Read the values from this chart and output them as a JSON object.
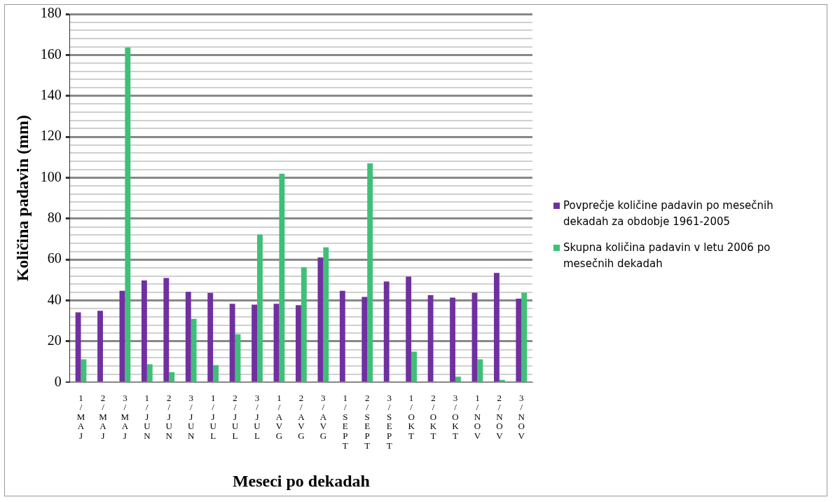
{
  "chart_data": {
    "type": "bar",
    "xlabel": "Meseci po dekadah",
    "ylabel": "Količina padavin (mm)",
    "categories": [
      "1/MAJ",
      "2/MAJ",
      "3/MAJ",
      "1/JUN",
      "2/JUN",
      "3/JUN",
      "1/JUL",
      "2/JUL",
      "3/JUL",
      "1/AVG",
      "2/AVG",
      "3/AVG",
      "1/SEPT",
      "2/SEPT",
      "3/SEPT",
      "1/OKT",
      "2/OKT",
      "3/OKT",
      "1/NOV",
      "2/NOV",
      "3/NOV"
    ],
    "series": [
      {
        "name": "Povprečje količine padavin po mesečnih dekadah za obdobje 1961-2005",
        "color": "#7030a0",
        "values": [
          34.2,
          35,
          44.7,
          49.8,
          51,
          44.2,
          43.7,
          38.4,
          38,
          38.4,
          37.7,
          61,
          44.7,
          41.7,
          49.3,
          51.7,
          42.6,
          41.4,
          43.8,
          53.5,
          40.9
        ]
      },
      {
        "name": "Skupna količina padavin v letu 2006 po mesečnih dekadah",
        "color": "#3fbf78",
        "values": [
          11.2,
          0.4,
          163.6,
          8.8,
          5,
          31,
          8.4,
          23.5,
          72.2,
          102,
          56.2,
          66,
          0,
          107,
          0,
          15,
          0,
          2.8,
          11.2,
          1.2,
          43.8
        ]
      }
    ],
    "ylim": [
      0,
      180
    ],
    "yticks": [
      0,
      {
        "value": 4,
        "label": null
      },
      {
        "value": 8,
        "label": null
      },
      {
        "value": 12,
        "label": null
      },
      {
        "value": 16,
        "label": null
      },
      20,
      {
        "value": 24,
        "label": null
      },
      {
        "value": 28,
        "label": null
      },
      {
        "value": 32,
        "label": null
      },
      {
        "value": 36,
        "label": null
      },
      40,
      {
        "value": 44,
        "label": null
      },
      {
        "value": 48,
        "label": null
      },
      {
        "value": 52,
        "label": null
      },
      {
        "value": 56,
        "label": null
      },
      60,
      {
        "value": 64,
        "label": null
      },
      {
        "value": 68,
        "label": null
      },
      {
        "value": 72,
        "label": null
      },
      {
        "value": 76,
        "label": null
      },
      80,
      {
        "value": 84,
        "label": null
      },
      {
        "value": 88,
        "label": null
      },
      {
        "value": 92,
        "label": null
      },
      {
        "value": 96,
        "label": null
      },
      100,
      {
        "value": 104,
        "label": null
      },
      {
        "value": 108,
        "label": null
      },
      {
        "value": 112,
        "label": null
      },
      {
        "value": 116,
        "label": null
      },
      120,
      {
        "value": 124,
        "label": null
      },
      {
        "value": 128,
        "label": null
      },
      {
        "value": 132,
        "label": null
      },
      {
        "value": 136,
        "label": null
      },
      140,
      {
        "value": 144,
        "label": null
      },
      {
        "value": 148,
        "label": null
      },
      {
        "value": 152,
        "label": null
      },
      {
        "value": 156,
        "label": null
      },
      160,
      {
        "value": 164,
        "label": null
      },
      {
        "value": 168,
        "label": null
      },
      {
        "value": 172,
        "label": null
      },
      {
        "value": 176,
        "label": null
      },
      180
    ],
    "grid": "y",
    "legend": "right"
  }
}
